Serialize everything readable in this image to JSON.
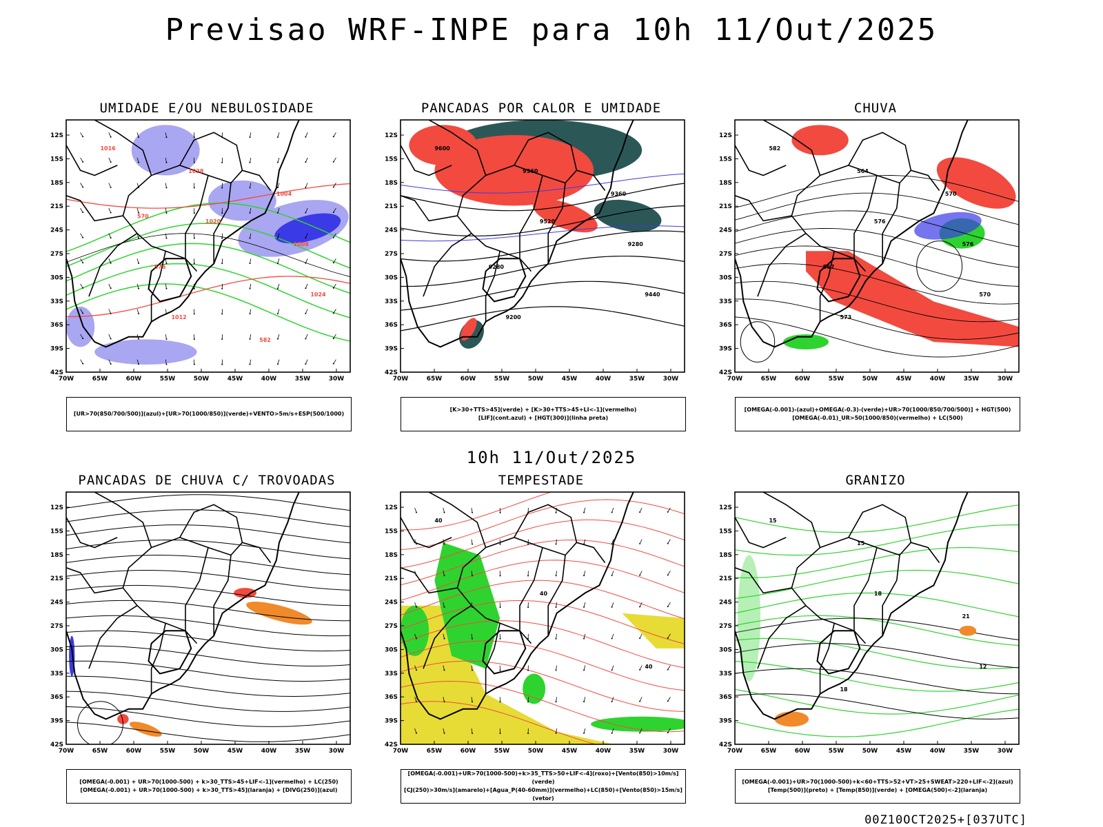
{
  "title": "Previsao WRF-INPE  para 10h 11/Out/2025",
  "mid_time": "10h 11/Out/2025",
  "footer": "00Z10OCT2025+[037UTC]",
  "axis": {
    "lat_labels": [
      "12S",
      "15S",
      "18S",
      "21S",
      "24S",
      "27S",
      "30S",
      "33S",
      "36S",
      "39S",
      "42S"
    ],
    "lon_labels": [
      "70W",
      "65W",
      "60W",
      "55W",
      "50W",
      "45W",
      "40W",
      "35W",
      "30W"
    ]
  },
  "colors": {
    "red": "#f24a3f",
    "blue": "#3a3ae6",
    "lavender": "#a9a6f2",
    "green": "#2fd32f",
    "darkteal": "#2c5757",
    "yellow": "#e6dc35",
    "orange": "#f08a2a"
  },
  "panels": [
    {
      "title": "UMIDADE E/OU NEBULOSIDADE",
      "legend": [
        "[UR>70(850/700/500)](azul)+[UR>70(1000/850)](verde)+VENTO>5m/s+ESP(500/1000)"
      ],
      "labels": [
        "1016",
        "1020",
        "1024",
        "1028",
        "1008",
        "1012",
        "1004",
        "576",
        "582",
        "570"
      ]
    },
    {
      "title": "PANCADAS POR CALOR E UMIDADE",
      "legend": [
        "[K>30+TTS>45](verde) + [K>30+TTS>45+LI<-1](vermelho)",
        "[LIF](cont.azul) + [HGT(300)](linha preta)"
      ],
      "labels": [
        "9600",
        "9520",
        "9440",
        "9360",
        "9280",
        "9200",
        "9360",
        "9280"
      ]
    },
    {
      "title": "CHUVA",
      "legend": [
        "[OMEGA(-0.001)-(azul)+OMEGA(-0.3)-(verde)+UR>70(1000/850/700/500)] + HGT(500)",
        "[OMEGA(-0.01)_UR>50(1000/850)(vermelho) + LC(500)"
      ],
      "labels": [
        "582",
        "576",
        "570",
        "564",
        "576",
        "573",
        "570",
        "567"
      ]
    },
    {
      "title": "PANCADAS DE CHUVA C/ TROVOADAS",
      "legend": [
        "[OMEGA(-0.001) + UR>70(1000-500) + k>30_TTS>45+LIF<-1](vermelho) + LC(250)",
        "[OMEGA(-0.001) + UR>70(1000-500) + k>30_TTS>45](laranja) + [DIVG(250)](azul)"
      ],
      "labels": []
    },
    {
      "title": "TEMPESTADE",
      "legend": [
        "[OMEGA(-0.001)+UR>70(1000-500)+k>35_TTS>50+LIF<-4](roxo)+[Vento(850)>10m/s](verde)",
        "[CJ(250)>30m/s](amarelo)+[Agua_P(40-60mm)](vermelho)+LC(850)+[Vento(850)>15m/s](vetor)"
      ],
      "labels": [
        "40",
        "40",
        "40"
      ]
    },
    {
      "title": "GRANIZO",
      "legend": [
        "[OMEGA(-0.001)+UR>70(1000-500)+k<60+TTS>52+VT>25+SWEAT>220+LIF<-2](azul)",
        "[Temp(500)](preto) + [Temp(850)](verde) + [OMEGA(500)<-2](laranja)"
      ],
      "labels": [
        "15",
        "18",
        "12",
        "15",
        "21",
        "18"
      ]
    }
  ]
}
